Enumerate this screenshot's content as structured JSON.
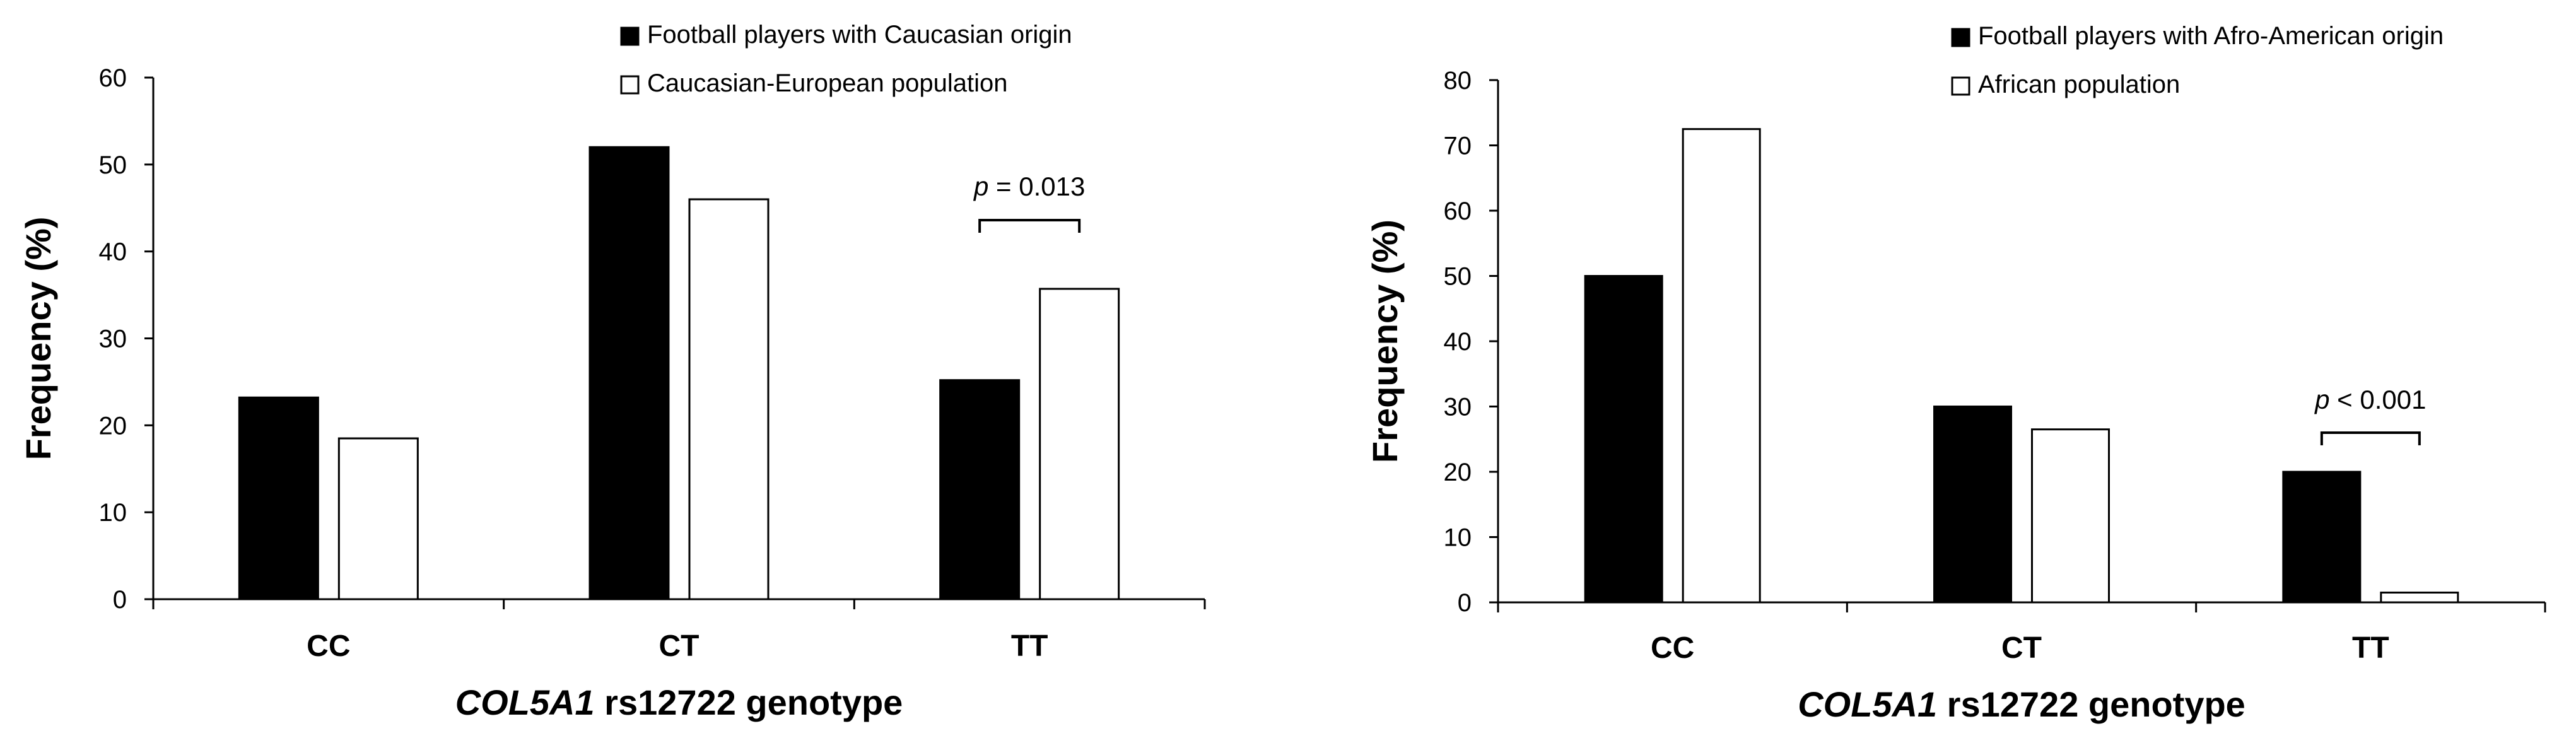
{
  "chart_data": [
    {
      "type": "bar",
      "categories": [
        "CC",
        "CT",
        "TT"
      ],
      "series": [
        {
          "name": "Football players with Caucasian origin",
          "values": [
            23.2,
            52.0,
            25.2
          ],
          "color": "#000000"
        },
        {
          "name": "Caucasian-European population",
          "values": [
            18.5,
            46.0,
            35.7
          ],
          "color": "#ffffff"
        }
      ],
      "title": "",
      "xlabel_italic": "COL5A1",
      "xlabel_rest": " rs12722 genotype",
      "ylabel": "Frequency (%)",
      "ylim": [
        0,
        60
      ],
      "yticks": [
        "0",
        "10",
        "20",
        "30",
        "40",
        "50",
        "60"
      ],
      "legend_position": "top",
      "grid": false,
      "annotation": {
        "category": "TT",
        "p_symbol": "p",
        "p_text": " = 0.013"
      }
    },
    {
      "type": "bar",
      "categories": [
        "CC",
        "CT",
        "TT"
      ],
      "series": [
        {
          "name": "Football players with Afro-American origin",
          "values": [
            50.0,
            30.0,
            20.0
          ],
          "color": "#000000"
        },
        {
          "name": "African population",
          "values": [
            72.5,
            26.5,
            1.5
          ],
          "color": "#ffffff"
        }
      ],
      "title": "",
      "xlabel_italic": "COL5A1",
      "xlabel_rest": " rs12722 genotype",
      "ylabel": "Frequency (%)",
      "ylim": [
        0,
        80
      ],
      "yticks": [
        "0",
        "10",
        "20",
        "30",
        "40",
        "50",
        "60",
        "70",
        "80"
      ],
      "legend_position": "top",
      "grid": false,
      "annotation": {
        "category": "TT",
        "p_symbol": "p",
        "p_text": " < 0.001"
      }
    }
  ]
}
